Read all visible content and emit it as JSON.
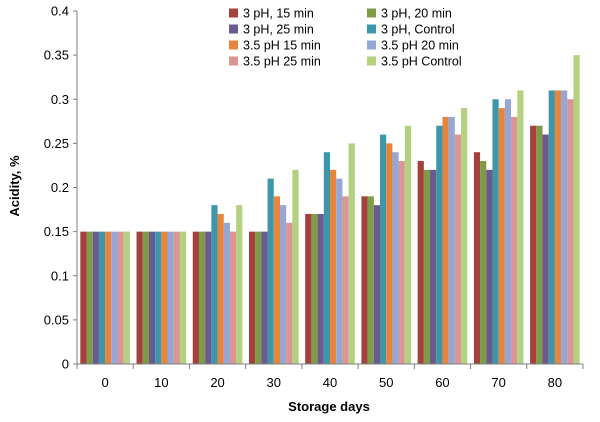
{
  "chart_data": {
    "type": "bar",
    "title": "",
    "xlabel": "Storage days",
    "ylabel": "Acidity, %",
    "categories": [
      "0",
      "10",
      "20",
      "30",
      "40",
      "50",
      "60",
      "70",
      "80"
    ],
    "ylim": [
      0,
      0.4
    ],
    "yticks": [
      "0",
      "0.05",
      "0.1",
      "0.15",
      "0.2",
      "0.25",
      "0.3",
      "0.35",
      "0.4"
    ],
    "grid": false,
    "legend_position": "top-right",
    "series": [
      {
        "name": "3 pH, 15 min",
        "color": "#a6403d",
        "values": [
          0.15,
          0.15,
          0.15,
          0.15,
          0.17,
          0.19,
          0.23,
          0.24,
          0.27
        ]
      },
      {
        "name": "3 pH, 20 min",
        "color": "#7f9a48",
        "values": [
          0.15,
          0.15,
          0.15,
          0.15,
          0.17,
          0.19,
          0.22,
          0.23,
          0.27
        ]
      },
      {
        "name": "3 pH, 25 min",
        "color": "#6a5a8e",
        "values": [
          0.15,
          0.15,
          0.15,
          0.15,
          0.17,
          0.18,
          0.22,
          0.22,
          0.26
        ]
      },
      {
        "name": "3 pH, Control",
        "color": "#3d97ab",
        "values": [
          0.15,
          0.15,
          0.18,
          0.21,
          0.24,
          0.26,
          0.27,
          0.3,
          0.31
        ]
      },
      {
        "name": "3.5 pH 15 min",
        "color": "#e9853a",
        "values": [
          0.15,
          0.15,
          0.17,
          0.19,
          0.22,
          0.25,
          0.28,
          0.29,
          0.31
        ]
      },
      {
        "name": "3.5 pH 20 min",
        "color": "#95a8d4",
        "values": [
          0.15,
          0.15,
          0.16,
          0.18,
          0.21,
          0.24,
          0.28,
          0.3,
          0.31
        ]
      },
      {
        "name": "3.5 pH 25 min",
        "color": "#d99694",
        "values": [
          0.15,
          0.15,
          0.15,
          0.16,
          0.19,
          0.23,
          0.26,
          0.28,
          0.3
        ]
      },
      {
        "name": "3.5 pH Control",
        "color": "#b3d17e",
        "values": [
          0.15,
          0.15,
          0.18,
          0.22,
          0.25,
          0.27,
          0.29,
          0.31,
          0.35
        ]
      }
    ]
  }
}
